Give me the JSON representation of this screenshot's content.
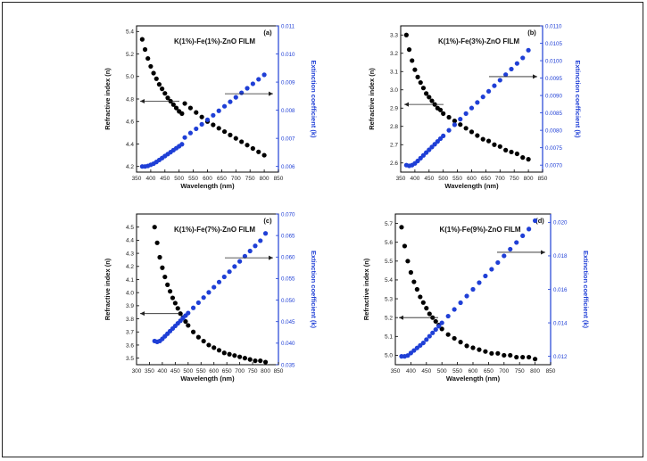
{
  "chart_data": [
    {
      "type": "scatter",
      "panel_label": "(a)",
      "title": "K(1%)-Fe(1%)-ZnO FILM",
      "xlabel": "Wavelength (nm)",
      "ylabel_left": "Refractive index (n)",
      "ylabel_right": "Extinction coefficient (k)",
      "xlim": [
        350,
        850
      ],
      "xticks": [
        "350",
        "400",
        "450",
        "500",
        "550",
        "600",
        "650",
        "700",
        "750",
        "800",
        "850"
      ],
      "ylim_left": [
        4.15,
        5.45
      ],
      "yticks_left": [
        "4.2",
        "4.4",
        "4.6",
        "4.8",
        "5.0",
        "5.2",
        "5.4"
      ],
      "ylim_right": [
        0.0058,
        0.011
      ],
      "yticks_right": [
        "0.006",
        "0.007",
        "0.008",
        "0.009",
        "0.010",
        "0.011"
      ],
      "left_axis_color": "#000000",
      "right_axis_color": "#1f3fd6",
      "series": [
        {
          "axis": "left",
          "color": "#000000",
          "x": [
            370,
            380,
            390,
            400,
            410,
            420,
            430,
            440,
            450,
            460,
            470,
            480,
            490,
            500,
            510,
            520,
            540,
            560,
            580,
            600,
            620,
            640,
            660,
            680,
            700,
            720,
            740,
            760,
            780,
            800
          ],
          "y": [
            5.33,
            5.24,
            5.16,
            5.09,
            5.03,
            4.98,
            4.93,
            4.89,
            4.85,
            4.81,
            4.78,
            4.75,
            4.72,
            4.69,
            4.67,
            4.76,
            4.72,
            4.68,
            4.64,
            4.6,
            4.57,
            4.54,
            4.51,
            4.48,
            4.45,
            4.42,
            4.39,
            4.36,
            4.33,
            4.3
          ]
        },
        {
          "axis": "right",
          "color": "#1f3fd6",
          "x": [
            370,
            380,
            390,
            400,
            410,
            420,
            430,
            440,
            450,
            460,
            470,
            480,
            490,
            500,
            510,
            520,
            540,
            560,
            580,
            600,
            620,
            640,
            660,
            680,
            700,
            720,
            740,
            760,
            780,
            800
          ],
          "y": [
            0.006,
            0.006,
            0.00602,
            0.00606,
            0.0061,
            0.00616,
            0.00623,
            0.0063,
            0.00637,
            0.00644,
            0.00651,
            0.00658,
            0.00665,
            0.00672,
            0.00679,
            0.00703,
            0.00719,
            0.00734,
            0.0075,
            0.00766,
            0.00782,
            0.00798,
            0.00814,
            0.0083,
            0.00846,
            0.00862,
            0.00878,
            0.00894,
            0.0091,
            0.00926
          ]
        }
      ]
    },
    {
      "type": "scatter",
      "panel_label": "(b)",
      "title": "K(1%)-Fe(3%)-ZnO FILM",
      "xlabel": "Wavelength (nm)",
      "ylabel_left": "Refractive index (n)",
      "ylabel_right": "Extinction coefficient (k)",
      "xlim": [
        350,
        850
      ],
      "xticks": [
        "350",
        "400",
        "450",
        "500",
        "550",
        "600",
        "650",
        "700",
        "750",
        "800",
        "850"
      ],
      "ylim_left": [
        2.55,
        3.35
      ],
      "yticks_left": [
        "2.6",
        "2.7",
        "2.8",
        "2.9",
        "3.0",
        "3.1",
        "3.2",
        "3.3"
      ],
      "ylim_right": [
        0.0068,
        0.011
      ],
      "yticks_right": [
        "0.0070",
        "0.0075",
        "0.0080",
        "0.0085",
        "0.0090",
        "0.0095",
        "0.0100",
        "0.0105",
        "0.0110"
      ],
      "left_axis_color": "#000000",
      "right_axis_color": "#1f3fd6",
      "series": [
        {
          "axis": "left",
          "color": "#000000",
          "x": [
            370,
            380,
            390,
            400,
            410,
            420,
            430,
            440,
            450,
            460,
            470,
            480,
            490,
            500,
            520,
            540,
            560,
            580,
            600,
            620,
            640,
            660,
            680,
            700,
            720,
            740,
            760,
            780,
            800
          ],
          "y": [
            3.3,
            3.22,
            3.16,
            3.11,
            3.07,
            3.04,
            3.01,
            2.98,
            2.96,
            2.94,
            2.92,
            2.9,
            2.89,
            2.87,
            2.85,
            2.83,
            2.81,
            2.79,
            2.77,
            2.75,
            2.73,
            2.72,
            2.7,
            2.69,
            2.67,
            2.66,
            2.65,
            2.63,
            2.62
          ]
        },
        {
          "axis": "right",
          "color": "#1f3fd6",
          "x": [
            370,
            380,
            390,
            400,
            410,
            420,
            430,
            440,
            450,
            460,
            470,
            480,
            490,
            500,
            520,
            540,
            560,
            580,
            600,
            620,
            640,
            660,
            680,
            700,
            720,
            740,
            760,
            780,
            800
          ],
          "y": [
            0.007,
            0.00698,
            0.007,
            0.00705,
            0.00712,
            0.0072,
            0.00728,
            0.00736,
            0.00744,
            0.00752,
            0.0076,
            0.00768,
            0.00776,
            0.00784,
            0.008,
            0.00816,
            0.00832,
            0.00848,
            0.00864,
            0.0088,
            0.00896,
            0.00912,
            0.00928,
            0.00944,
            0.0096,
            0.00976,
            0.00992,
            0.01008,
            0.0103
          ]
        }
      ]
    },
    {
      "type": "scatter",
      "panel_label": "(c)",
      "title": "K(1%)-Fe(7%)-ZnO FILM",
      "xlabel": "Wavelength (nm)",
      "ylabel_left": "Refractive index (n)",
      "ylabel_right": "Extinction coefficient (k)",
      "xlim": [
        300,
        850
      ],
      "xticks": [
        "300",
        "350",
        "400",
        "450",
        "500",
        "550",
        "600",
        "650",
        "700",
        "750",
        "800",
        "850"
      ],
      "ylim_left": [
        3.45,
        4.6
      ],
      "yticks_left": [
        "3.5",
        "3.6",
        "3.7",
        "3.8",
        "3.9",
        "4.0",
        "4.1",
        "4.2",
        "4.3",
        "4.4",
        "4.5"
      ],
      "ylim_right": [
        0.035,
        0.07
      ],
      "yticks_right": [
        "0.035",
        "0.040",
        "0.045",
        "0.050",
        "0.055",
        "0.060",
        "0.065",
        "0.070"
      ],
      "left_axis_color": "#000000",
      "right_axis_color": "#1f3fd6",
      "series": [
        {
          "axis": "left",
          "color": "#000000",
          "x": [
            370,
            380,
            390,
            400,
            410,
            420,
            430,
            440,
            450,
            460,
            470,
            480,
            490,
            500,
            520,
            540,
            560,
            580,
            600,
            620,
            640,
            660,
            680,
            700,
            720,
            740,
            760,
            780,
            800
          ],
          "y": [
            4.5,
            4.38,
            4.27,
            4.19,
            4.12,
            4.06,
            4.01,
            3.96,
            3.92,
            3.88,
            3.84,
            3.81,
            3.78,
            3.75,
            3.7,
            3.66,
            3.63,
            3.6,
            3.58,
            3.56,
            3.54,
            3.53,
            3.52,
            3.51,
            3.5,
            3.49,
            3.48,
            3.48,
            3.47
          ]
        },
        {
          "axis": "right",
          "color": "#1f3fd6",
          "x": [
            370,
            380,
            390,
            400,
            410,
            420,
            430,
            440,
            450,
            460,
            470,
            480,
            490,
            500,
            520,
            540,
            560,
            580,
            600,
            620,
            640,
            660,
            680,
            700,
            720,
            740,
            760,
            780,
            800
          ],
          "y": [
            0.0405,
            0.0403,
            0.0405,
            0.041,
            0.0416,
            0.0422,
            0.0428,
            0.0434,
            0.044,
            0.0446,
            0.0452,
            0.0458,
            0.0464,
            0.047,
            0.0482,
            0.0494,
            0.0506,
            0.0518,
            0.053,
            0.0542,
            0.0554,
            0.0566,
            0.0578,
            0.059,
            0.0602,
            0.0614,
            0.0626,
            0.0638,
            0.0655
          ]
        }
      ]
    },
    {
      "type": "scatter",
      "panel_label": "(d)",
      "title": "K(1%)-Fe(9%)-ZnO FILM",
      "xlabel": "Wavelength (nm)",
      "ylabel_left": "Refractive index (n)",
      "ylabel_right": "Extinction coefficient (k)",
      "xlim": [
        350,
        850
      ],
      "xticks": [
        "350",
        "400",
        "450",
        "500",
        "550",
        "600",
        "650",
        "700",
        "750",
        "800",
        "850"
      ],
      "ylim_left": [
        4.95,
        5.75
      ],
      "yticks_left": [
        "5.0",
        "5.1",
        "5.2",
        "5.3",
        "5.4",
        "5.5",
        "5.6",
        "5.7"
      ],
      "ylim_right": [
        0.0115,
        0.0205
      ],
      "yticks_right": [
        "0.012",
        "0.014",
        "0.016",
        "0.018",
        "0.020"
      ],
      "left_axis_color": "#000000",
      "right_axis_color": "#1f3fd6",
      "series": [
        {
          "axis": "left",
          "color": "#000000",
          "x": [
            370,
            380,
            390,
            400,
            410,
            420,
            430,
            440,
            450,
            460,
            470,
            480,
            490,
            500,
            520,
            540,
            560,
            580,
            600,
            620,
            640,
            660,
            680,
            700,
            720,
            740,
            760,
            780,
            800
          ],
          "y": [
            5.68,
            5.58,
            5.5,
            5.44,
            5.39,
            5.35,
            5.31,
            5.28,
            5.25,
            5.22,
            5.2,
            5.18,
            5.16,
            5.14,
            5.11,
            5.09,
            5.07,
            5.05,
            5.04,
            5.03,
            5.02,
            5.01,
            5.01,
            5.0,
            5.0,
            4.99,
            4.99,
            4.99,
            4.98
          ]
        },
        {
          "axis": "right",
          "color": "#1f3fd6",
          "x": [
            370,
            380,
            390,
            400,
            410,
            420,
            430,
            440,
            450,
            460,
            470,
            480,
            490,
            500,
            520,
            540,
            560,
            580,
            600,
            620,
            640,
            660,
            680,
            700,
            720,
            740,
            760,
            780,
            800
          ],
          "y": [
            0.012,
            0.012,
            0.01205,
            0.0122,
            0.01235,
            0.0125,
            0.01265,
            0.0128,
            0.013,
            0.0132,
            0.0134,
            0.0136,
            0.0138,
            0.014,
            0.0144,
            0.0148,
            0.0152,
            0.0156,
            0.016,
            0.0164,
            0.0168,
            0.0172,
            0.0176,
            0.018,
            0.0184,
            0.0188,
            0.0192,
            0.0196,
            0.0201
          ]
        }
      ]
    }
  ]
}
